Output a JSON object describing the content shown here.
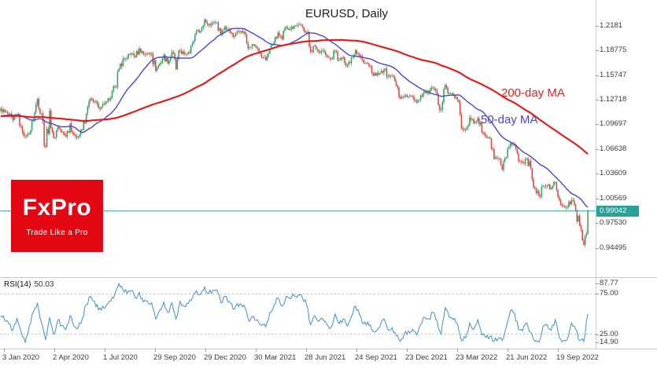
{
  "title": "EURUSD, Daily",
  "legend": {
    "ma200": "200-day MA",
    "ma50": "50-day MA",
    "ma200_color": "#e01f1f",
    "ma50_color": "#4747c8"
  },
  "logo": {
    "name": "FxPro",
    "tagline": "Trade Like a Pro",
    "bg_color": "#e30613"
  },
  "price_axis": {
    "ticks": [
      "1.2181",
      "1.18775",
      "1.15747",
      "1.12718",
      "1.09697",
      "1.06638",
      "1.03609",
      "1.00569",
      "0.97530",
      "0.94495"
    ],
    "current_price": "0.99042",
    "current_price_color": "#2aa198"
  },
  "date_axis": {
    "labels": [
      "3 Jan 2020",
      "2 Apr 2020",
      "1 Jul 2020",
      "29 Sep 2020",
      "29 Dec 2020",
      "30 Mar 2021",
      "28 Jun 2021",
      "24 Sep 2021",
      "23 Dec 2021",
      "23 Mar 2022",
      "21 Jun 2022",
      "19 Sep 2022"
    ]
  },
  "rsi": {
    "label": "RSI(14)",
    "value": "50.03",
    "ticks": [
      "87.77",
      "75.00",
      "25.00",
      "14.90"
    ],
    "levels": [
      75,
      25
    ],
    "line_color": "#3f8fca"
  },
  "chart_data": {
    "type": "candlestick",
    "title": "EURUSD, Daily",
    "x_range": [
      "3 Jan 2020",
      "19 Sep 2022"
    ],
    "y_range": [
      0.91,
      1.25
    ],
    "up_color": "#2f9e5f",
    "down_color": "#d5453c",
    "ma_seed": 1.107,
    "current_price": 0.99042,
    "closes": [
      1.116,
      1.112,
      1.1095,
      1.1025,
      1.1094,
      1.0945,
      1.083,
      1.085,
      1.1026,
      1.1284,
      1.1105,
      1.0694,
      1.114,
      1.0805,
      1.0935,
      1.0875,
      1.082,
      1.098,
      1.084,
      1.082,
      1.09,
      1.1101,
      1.129,
      1.1255,
      1.1175,
      1.1219,
      1.1248,
      1.13,
      1.1427,
      1.1656,
      1.1778,
      1.1785,
      1.1842,
      1.1797,
      1.1903,
      1.1838,
      1.1846,
      1.184,
      1.1631,
      1.1716,
      1.1826,
      1.1718,
      1.186,
      1.1647,
      1.1873,
      1.1834,
      1.1858,
      1.1963,
      1.2121,
      1.2114,
      1.2257,
      1.2189,
      1.2216,
      1.2222,
      1.2075,
      1.2171,
      1.2136,
      1.2045,
      1.212,
      1.2119,
      1.2075,
      1.1915,
      1.1953,
      1.1903,
      1.1793,
      1.176,
      1.1899,
      1.1982,
      1.2097,
      1.202,
      1.2166,
      1.2144,
      1.2181,
      1.2193,
      1.2166,
      1.2108,
      1.1863,
      1.1937,
      1.1865,
      1.1878,
      1.1806,
      1.1771,
      1.187,
      1.1762,
      1.1795,
      1.1697,
      1.1795,
      1.188,
      1.1814,
      1.1725,
      1.172,
      1.1595,
      1.1573,
      1.1601,
      1.1645,
      1.1561,
      1.1567,
      1.1445,
      1.1289,
      1.1318,
      1.1312,
      1.1315,
      1.1239,
      1.1325,
      1.137,
      1.136,
      1.1413,
      1.1343,
      1.1151,
      1.1451,
      1.1351,
      1.1324,
      1.127,
      1.0926,
      1.0911,
      1.1051,
      1.0983,
      1.1046,
      1.0876,
      1.0808,
      1.0794,
      1.0545,
      1.0551,
      1.0412,
      1.0563,
      1.0735,
      1.072,
      1.0518,
      1.0498,
      1.0553,
      1.0425,
      1.0183,
      1.009,
      1.0213,
      1.0221,
      1.018,
      1.0259,
      1.0039,
      0.9966,
      0.9952,
      1.0041,
      0.991,
      0.972,
      0.949,
      0.9904
    ],
    "overlays": [
      {
        "name": "50-day MA",
        "window": 30,
        "color": "#4747c8",
        "width": 1.4
      },
      {
        "name": "200-day MA",
        "window": 120,
        "color": "#e01f1f",
        "width": 2.2
      }
    ],
    "rsi_range": [
      8,
      95
    ],
    "rsi_values": [
      48,
      42,
      38,
      30,
      45,
      28,
      14.9,
      35,
      52,
      64,
      40,
      18,
      46,
      25,
      42,
      36,
      31,
      48,
      35,
      33,
      44,
      62,
      72,
      66,
      55,
      60,
      62,
      66,
      75,
      87.77,
      80,
      76,
      79,
      70,
      77,
      65,
      66,
      64,
      44,
      55,
      65,
      52,
      64,
      44,
      66,
      60,
      63,
      70,
      79,
      75,
      84,
      76,
      79,
      80,
      64,
      72,
      66,
      56,
      63,
      62,
      57,
      41,
      47,
      43,
      36,
      34,
      52,
      61,
      70,
      60,
      72,
      69,
      73,
      74,
      70,
      62,
      37,
      48,
      41,
      44,
      37,
      33,
      50,
      38,
      44,
      35,
      47,
      60,
      49,
      38,
      40,
      30,
      28,
      34,
      44,
      30,
      33,
      23,
      16,
      26,
      29,
      31,
      24,
      37,
      46,
      44,
      52,
      42,
      25,
      58,
      46,
      43,
      38,
      17,
      20,
      39,
      31,
      43,
      24,
      21,
      22,
      16,
      19,
      17,
      34,
      54,
      51,
      31,
      29,
      39,
      27,
      16,
      15,
      35,
      37,
      30,
      43,
      21,
      17,
      19,
      39,
      31,
      17,
      16,
      50.03
    ]
  }
}
